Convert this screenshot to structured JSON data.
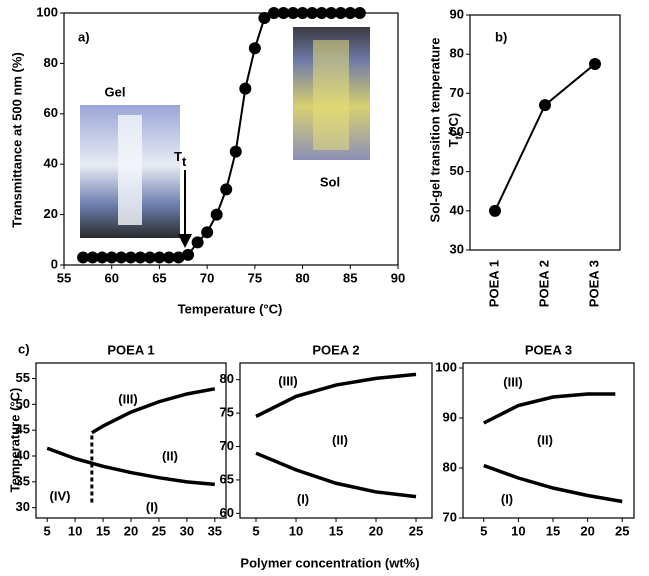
{
  "chart_data": [
    {
      "type": "line",
      "markers": true,
      "color": "#000000",
      "panel_label": "a)",
      "xlabel": "Temperature (°C)",
      "ylabel": "Transmittance at 500 nm (%)",
      "x": [
        57,
        58,
        59,
        60,
        61,
        62,
        63,
        64,
        65,
        66,
        67,
        68,
        69,
        70,
        71,
        72,
        73,
        74,
        75,
        76,
        77,
        78,
        79,
        80,
        81,
        82,
        83,
        84,
        85,
        86
      ],
      "values": [
        3,
        3,
        3,
        3,
        3,
        3,
        3,
        3,
        3,
        3,
        3,
        4,
        9,
        13,
        20,
        30,
        45,
        70,
        86,
        98,
        100,
        100,
        100,
        100,
        100,
        100,
        100,
        100,
        100,
        100
      ],
      "xlim": [
        55,
        90
      ],
      "xticks": [
        55,
        60,
        65,
        70,
        75,
        80,
        85,
        90
      ],
      "ylim": [
        0,
        100
      ],
      "yticks": [
        0,
        20,
        40,
        60,
        80,
        100
      ],
      "annotations": [
        "Gel",
        "Sol"
      ],
      "marker_label": {
        "base": "T",
        "sub": "t"
      }
    },
    {
      "type": "line",
      "markers": true,
      "color": "#000000",
      "panel_label": "b)",
      "ylabel": "Sol-gel transition temperature",
      "ylabel_symbol": {
        "base": "T",
        "sub": "t",
        "unit": "(°C)"
      },
      "categories": [
        "POEA 1",
        "POEA 2",
        "POEA 3"
      ],
      "values": [
        40,
        67,
        77.5
      ],
      "ylim": [
        30,
        90
      ],
      "yticks": [
        30,
        40,
        50,
        60,
        70,
        80,
        90
      ]
    },
    {
      "type": "line",
      "title": "POEA 1",
      "panel_label": "c)",
      "ylabel": "Temperature (°C)",
      "series": [
        {
          "color": "#000000",
          "x": [
            5,
            10,
            15,
            20,
            25,
            30,
            35
          ],
          "values": [
            41.5,
            39.5,
            38,
            36.8,
            35.8,
            35,
            34.5
          ]
        },
        {
          "color": "#000000",
          "x": [
            13,
            15,
            20,
            25,
            30,
            35
          ],
          "values": [
            44.5,
            45.8,
            48.5,
            50.5,
            52,
            53
          ]
        },
        {
          "color": "#000000",
          "dash": true,
          "x": [
            13,
            13
          ],
          "values": [
            31,
            44.5
          ]
        }
      ],
      "xlim": [
        3,
        37
      ],
      "xticks": [
        5,
        10,
        15,
        20,
        25,
        30,
        35
      ],
      "ylim": [
        28,
        58
      ],
      "yticks": [
        30,
        35,
        40,
        45,
        50,
        55
      ],
      "annotations": [
        "(III)",
        "(II)",
        "(I)",
        "(IV)"
      ]
    },
    {
      "type": "line",
      "title": "POEA 2",
      "xlabel": "Polymer concentration (wt%)",
      "series": [
        {
          "color": "#000000",
          "x": [
            5,
            10,
            15,
            20,
            25
          ],
          "values": [
            74.5,
            77.5,
            79.2,
            80.2,
            80.8
          ]
        },
        {
          "color": "#000000",
          "x": [
            5,
            10,
            15,
            20,
            25
          ],
          "values": [
            69,
            66.5,
            64.5,
            63.2,
            62.5
          ]
        }
      ],
      "xlim": [
        3,
        27
      ],
      "xticks": [
        5,
        10,
        15,
        20,
        25
      ],
      "ylim": [
        59.3,
        82.5
      ],
      "yticks": [
        60,
        65,
        70,
        75,
        80
      ],
      "annotations": [
        "(III)",
        "(II)",
        "(I)"
      ]
    },
    {
      "type": "line",
      "title": "POEA 3",
      "series": [
        {
          "color": "#000000",
          "x": [
            5,
            10,
            15,
            20,
            24
          ],
          "values": [
            89,
            92.5,
            94.2,
            94.8,
            94.8
          ]
        },
        {
          "color": "#000000",
          "x": [
            5,
            10,
            15,
            20,
            25
          ],
          "values": [
            80.5,
            78,
            76,
            74.5,
            73.3
          ]
        }
      ],
      "xlim": [
        2,
        26.7
      ],
      "xticks": [
        5,
        10,
        15,
        20,
        25
      ],
      "ylim": [
        70,
        101
      ],
      "yticks": [
        70,
        80,
        90,
        100
      ],
      "annotations": [
        "(III)",
        "(II)",
        "(I)"
      ]
    }
  ]
}
